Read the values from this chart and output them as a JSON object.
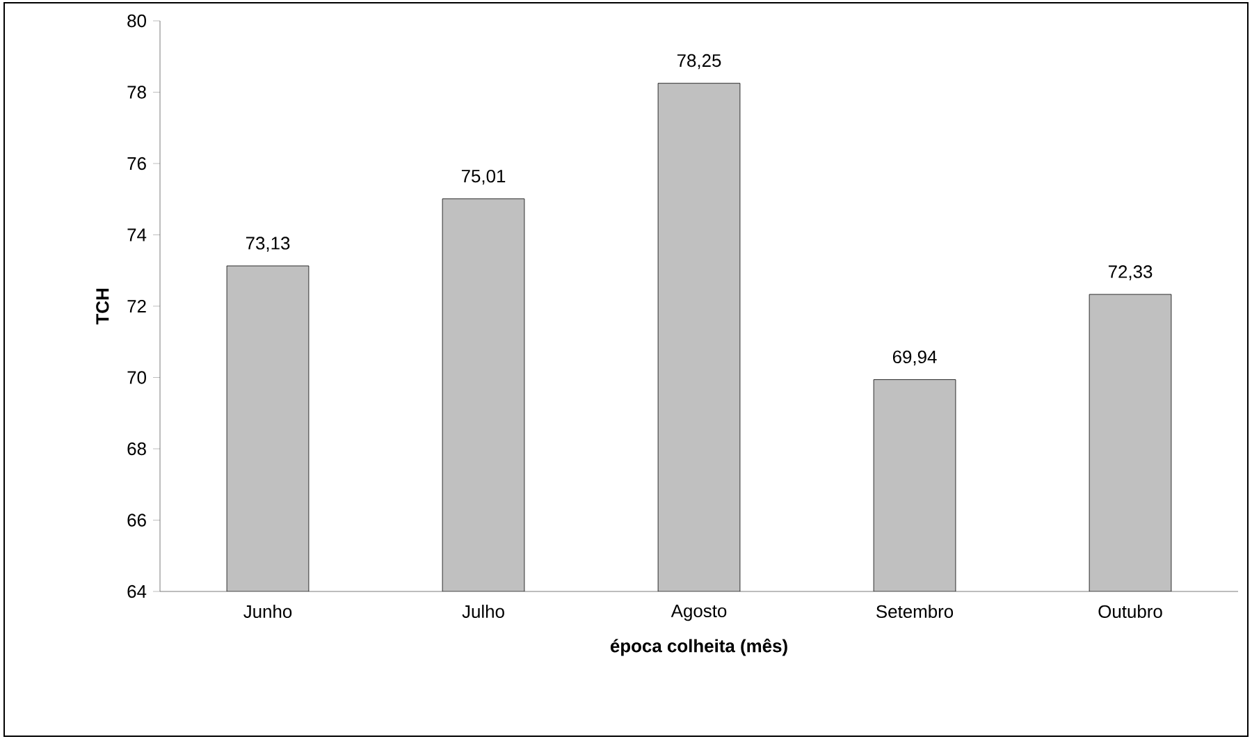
{
  "chart_data": {
    "type": "bar",
    "xlabel": "época colheita (mês)",
    "ylabel": "TCH",
    "categories": [
      "Junho",
      "Julho",
      "Agosto",
      "Setembro",
      "Outubro"
    ],
    "values": [
      73.13,
      75.01,
      78.25,
      69.94,
      72.33
    ],
    "value_labels": [
      "73,13",
      "75,01",
      "78,25",
      "69,94",
      "72,33"
    ],
    "color": "#c0c0c0",
    "ylim": [
      64,
      80
    ],
    "yticks": [
      64,
      66,
      68,
      70,
      72,
      74,
      76,
      78,
      80
    ]
  }
}
